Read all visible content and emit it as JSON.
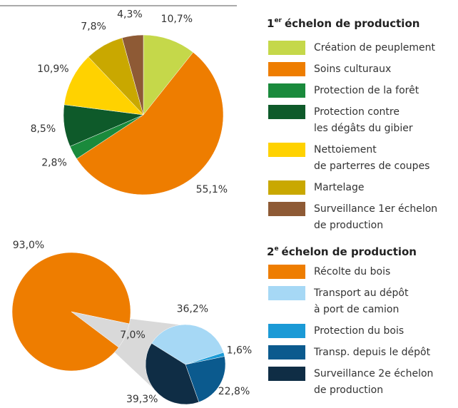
{
  "chart_data": [
    {
      "type": "pie",
      "legend_title": {
        "number": "1",
        "suffix": "er",
        "text": "échelon de production"
      },
      "categories": [
        [
          "Création de peuplement"
        ],
        [
          "Soins culturaux"
        ],
        [
          "Protection de la forêt"
        ],
        [
          "Protection contre",
          "les dégâts du gibier"
        ],
        [
          "Nettoiement",
          "de parterres de coupes"
        ],
        [
          "Martelage"
        ],
        [
          "Surveillance 1er échelon",
          "de production"
        ]
      ],
      "values": [
        10.7,
        55.1,
        2.8,
        8.5,
        10.9,
        7.8,
        4.3
      ],
      "value_labels": [
        "10,7%",
        "55,1%",
        "2,8%",
        "8,5%",
        "10,9%",
        "7,8%",
        "4,3%"
      ],
      "colors": [
        "#c5d84a",
        "#ee7d00",
        "#1a8a3c",
        "#0e5a2a",
        "#ffd200",
        "#c9a800",
        "#8e5a35"
      ]
    },
    {
      "type": "pie_of_pie",
      "legend_title": {
        "number": "2",
        "suffix": "e",
        "text": "échelon de production"
      },
      "categories": [
        [
          "Récolte du bois"
        ],
        null
      ],
      "values": [
        93.0,
        7.0
      ],
      "value_labels": [
        "93,0%",
        "7,0%"
      ],
      "colors": [
        "#ee7d00",
        "#d9d9d9"
      ],
      "sub": {
        "categories": [
          [
            "Transport au dépôt",
            "à port de camion"
          ],
          [
            "Protection du bois"
          ],
          [
            "Transp. depuis le dépôt"
          ],
          [
            "Surveillance 2e échelon",
            "de production"
          ]
        ],
        "values": [
          36.2,
          1.6,
          22.8,
          39.3
        ],
        "value_labels": [
          "36,2%",
          "1,6%",
          "22,8%",
          "39,3%"
        ],
        "colors": [
          "#a6d8f5",
          "#1b9ad6",
          "#0b5a8e",
          "#0f2d45"
        ]
      }
    }
  ]
}
